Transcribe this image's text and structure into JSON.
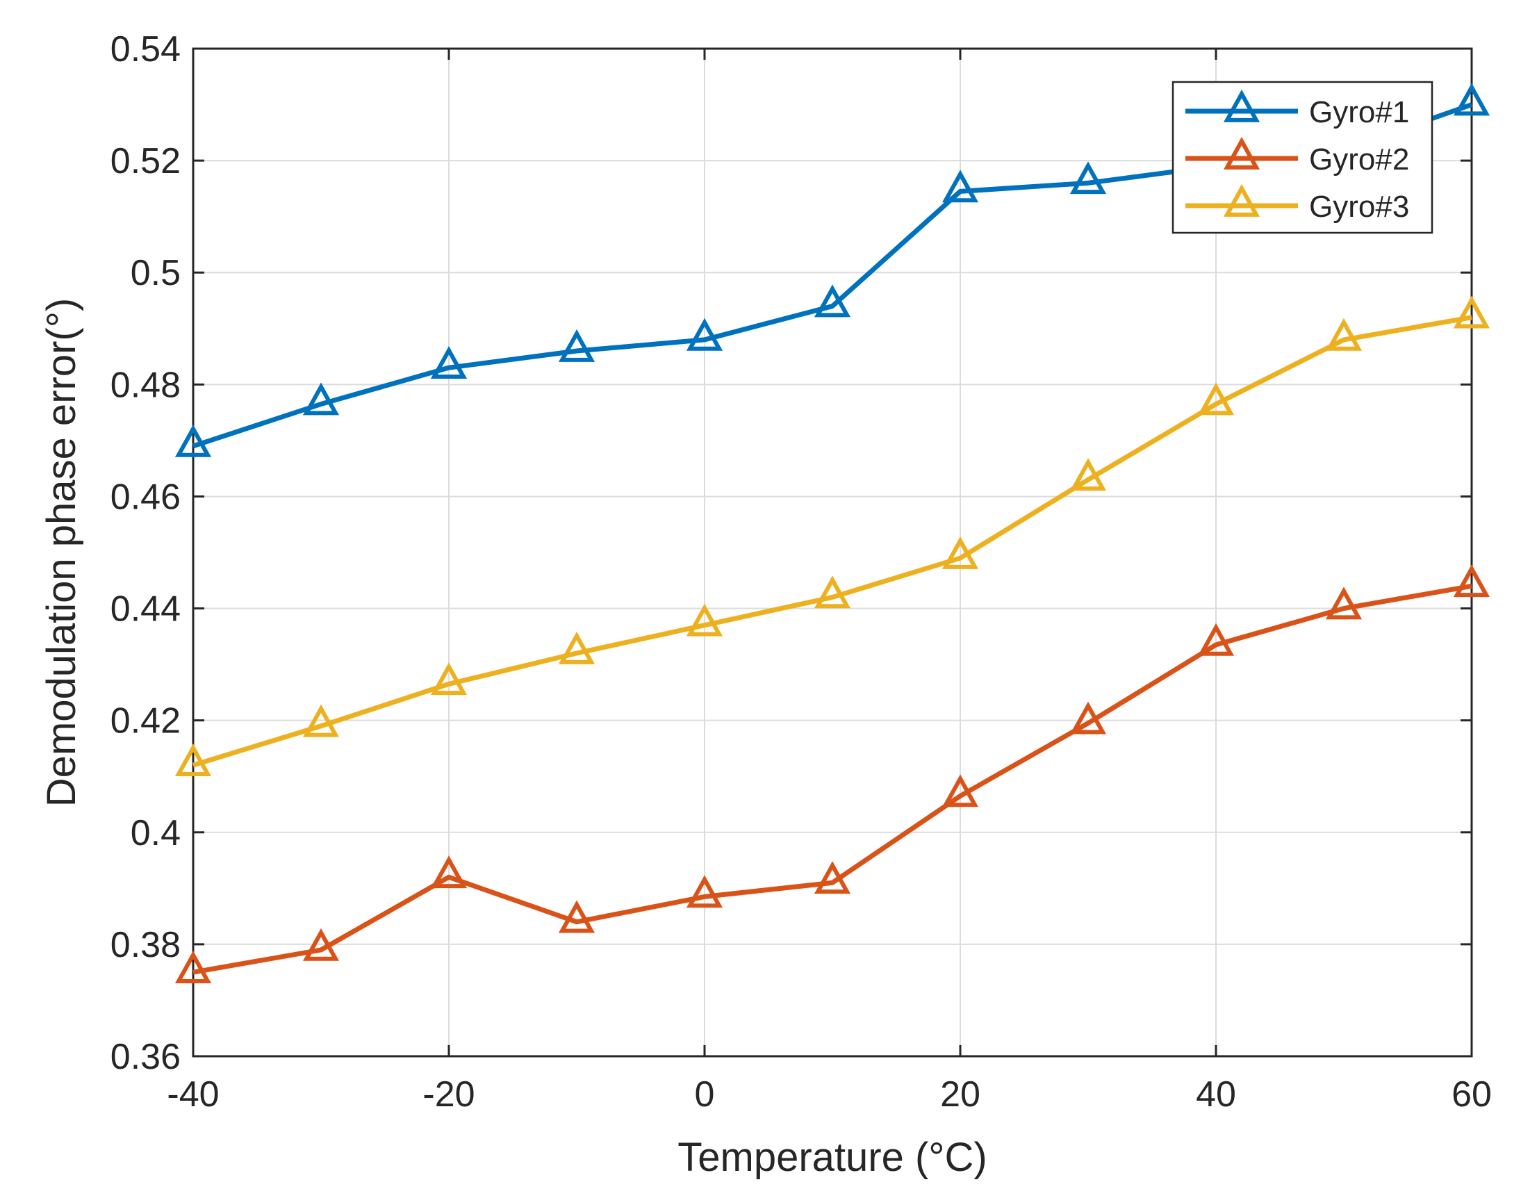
{
  "chart_data": {
    "type": "line",
    "title": "",
    "xlabel": "Temperature (°C)",
    "ylabel": "Demodulation phase error(°)",
    "xlim": [
      -40,
      60
    ],
    "ylim": [
      0.36,
      0.54
    ],
    "xticks": [
      -40,
      -20,
      0,
      20,
      40,
      60
    ],
    "yticks": [
      0.36,
      0.38,
      0.4,
      0.42,
      0.44,
      0.46,
      0.48,
      0.5,
      0.52,
      0.54
    ],
    "xtick_labels": [
      "-40",
      "-20",
      "0",
      "20",
      "40",
      "60"
    ],
    "ytick_labels": [
      "0.36",
      "0.38",
      "0.4",
      "0.42",
      "0.44",
      "0.46",
      "0.48",
      "0.5",
      "0.52",
      "0.54"
    ],
    "grid": true,
    "legend_position": "top-right",
    "x": [
      -40,
      -30,
      -20,
      -10,
      0,
      10,
      20,
      30,
      40,
      50,
      60
    ],
    "series": [
      {
        "name": "Gyro#1",
        "color": "#0072BD",
        "marker": "triangle",
        "values": [
          0.469,
          0.4765,
          0.483,
          0.486,
          0.488,
          0.494,
          0.5145,
          0.516,
          0.519,
          0.522,
          0.53
        ]
      },
      {
        "name": "Gyro#2",
        "color": "#D95319",
        "marker": "triangle",
        "values": [
          0.375,
          0.379,
          0.392,
          0.384,
          0.3885,
          0.391,
          0.4065,
          0.4195,
          0.4335,
          0.44,
          0.444
        ]
      },
      {
        "name": "Gyro#3",
        "color": "#EDB120",
        "marker": "triangle",
        "values": [
          0.412,
          0.419,
          0.4265,
          0.432,
          0.437,
          0.442,
          0.449,
          0.463,
          0.4765,
          0.488,
          0.492
        ]
      }
    ]
  }
}
